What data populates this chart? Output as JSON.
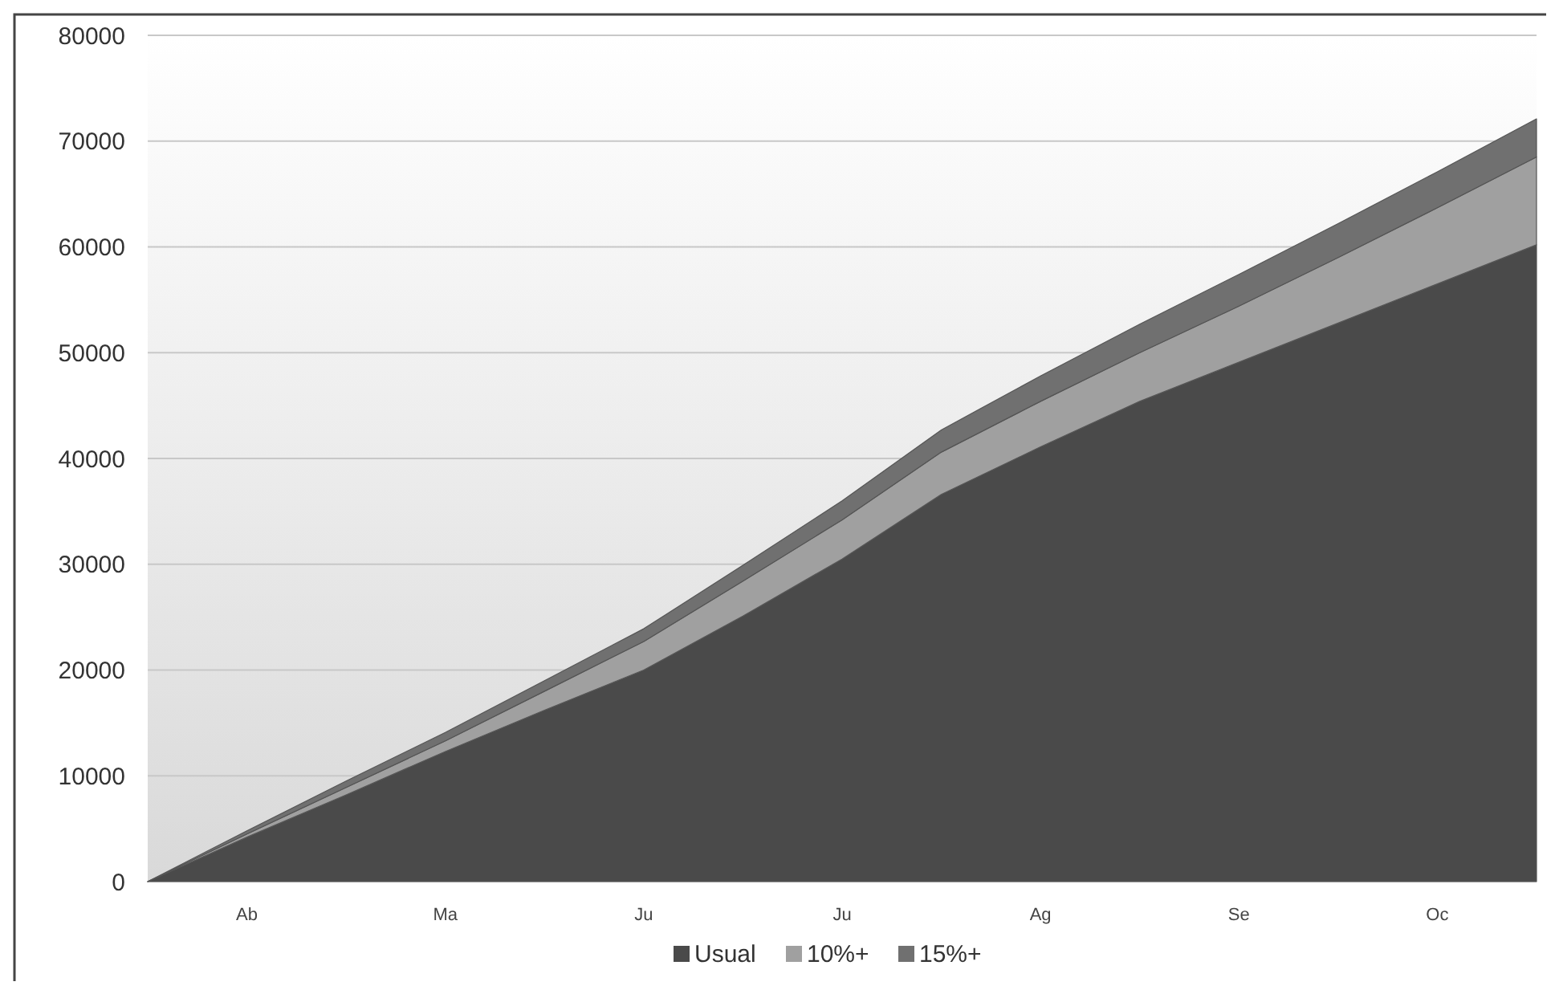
{
  "chart_data": {
    "type": "area",
    "stacked": true,
    "categories": [
      null,
      "Ab",
      null,
      "Ma",
      null,
      "Ju",
      null,
      "Ju",
      null,
      "Ag",
      null,
      "Se",
      null,
      "Oc",
      null
    ],
    "series": [
      {
        "name": "Usual",
        "color": "#4a4a4a",
        "values": [
          0,
          4200,
          8200,
          12300,
          16200,
          20000,
          25100,
          30500,
          36600,
          41100,
          45400,
          49100,
          52800,
          56500,
          60200
        ]
      },
      {
        "name": "10%+",
        "color": "#a0a0a0",
        "values": [
          0,
          300,
          700,
          1000,
          1800,
          2700,
          3300,
          3700,
          4000,
          4300,
          4600,
          5300,
          6200,
          7200,
          8300
        ]
      },
      {
        "name": "15%+",
        "color": "#707070",
        "values": [
          0,
          300,
          600,
          800,
          1000,
          1200,
          1500,
          1800,
          2100,
          2400,
          2700,
          3000,
          3200,
          3400,
          3600
        ]
      }
    ],
    "ylim": [
      0,
      80000
    ],
    "yticks": [
      0,
      10000,
      20000,
      30000,
      40000,
      50000,
      60000,
      70000,
      80000
    ],
    "grid": "y",
    "legend": "bottom"
  }
}
